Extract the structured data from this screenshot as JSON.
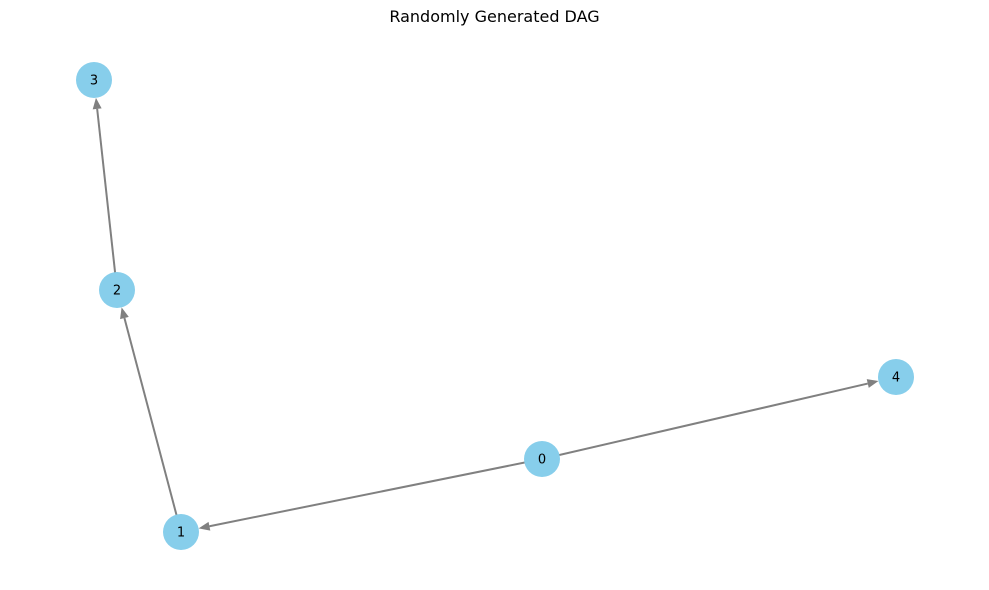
{
  "title": "Randomly Generated DAG",
  "colors": {
    "node_fill": "#87ceeb",
    "edge": "#808080",
    "label": "#000000"
  },
  "nodes": [
    {
      "id": "0",
      "label": "0"
    },
    {
      "id": "1",
      "label": "1"
    },
    {
      "id": "2",
      "label": "2"
    },
    {
      "id": "3",
      "label": "3"
    },
    {
      "id": "4",
      "label": "4"
    }
  ],
  "edges": [
    {
      "from": "0",
      "to": "1"
    },
    {
      "from": "0",
      "to": "4"
    },
    {
      "from": "1",
      "to": "2"
    },
    {
      "from": "2",
      "to": "3"
    }
  ]
}
